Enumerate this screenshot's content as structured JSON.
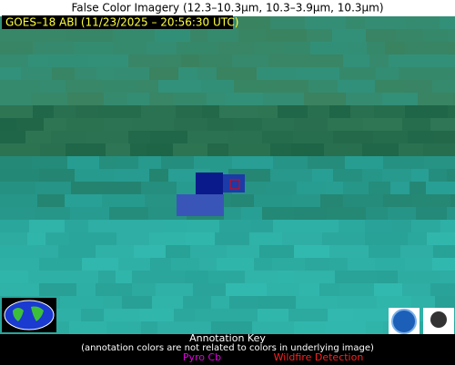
{
  "header": {
    "title": "False Color Imagery (12.3–10.3µm, 10.3–3.9µm, 10.3µm)"
  },
  "image": {
    "label": "GOES–18 ABI (11/23/2025 – 20:56:30 UTC)"
  },
  "key": {
    "title": "Annotation Key",
    "note": "(annotation colors are not related to colors in underlying image)",
    "items": [
      "Pyro Cb",
      "Wildfire Detection"
    ]
  }
}
